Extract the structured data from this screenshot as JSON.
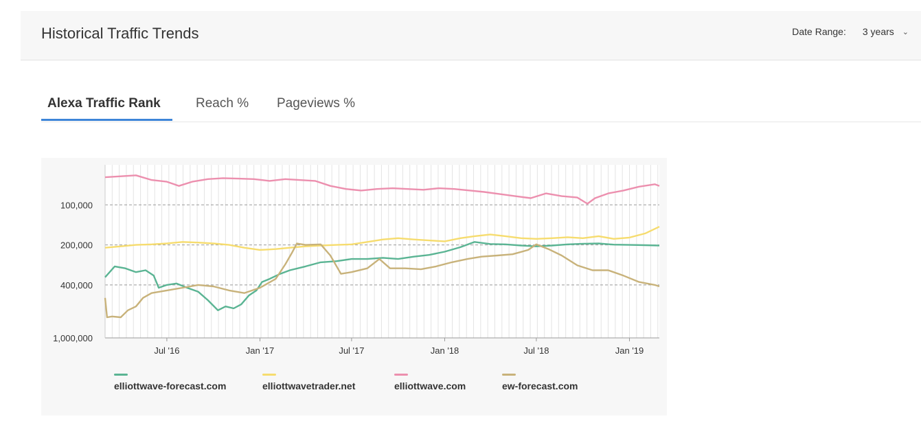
{
  "header": {
    "title": "Historical Traffic Trends",
    "date_range_label": "Date Range:",
    "date_range_value": "3 years"
  },
  "tabs": [
    {
      "label": "Alexa Traffic Rank",
      "active": true
    },
    {
      "label": "Reach %",
      "active": false
    },
    {
      "label": "Pageviews %",
      "active": false
    }
  ],
  "colors": {
    "accent": "#3d85d8",
    "elliottwave-forecast.com": "#5ab493",
    "elliottwavetrader.net": "#f6dc6e",
    "elliottwave.com": "#ec8fae",
    "ew-forecast.com": "#c8b27a"
  },
  "chart_data": {
    "type": "line",
    "title": "",
    "xlabel": "",
    "ylabel": "",
    "y_scale": "log",
    "y_reversed": true,
    "ylim": [
      1000000,
      50000
    ],
    "y_ticks": [
      100000,
      200000,
      400000,
      1000000
    ],
    "y_tick_labels": [
      "100,000",
      "200,000",
      "400,000",
      "1,000,000"
    ],
    "grid": "vertical lines every two weeks; dashed horizontal lines at 100,000, 200,000 and 400,000",
    "legend_position": "bottom",
    "x_ticks": [
      "2016-07-01",
      "2017-01-01",
      "2017-07-01",
      "2018-01-01",
      "2018-07-01",
      "2019-01-01"
    ],
    "x_tick_labels": [
      "Jul '16",
      "Jan '17",
      "Jul '17",
      "Jan '18",
      "Jul '18",
      "Jan '19"
    ],
    "xlim": [
      "2016-03-01",
      "2019-03-01"
    ],
    "series": [
      {
        "name": "elliottwave-forecast.com",
        "color": "#5ab493",
        "points": [
          [
            "2016-03-01",
            350000
          ],
          [
            "2016-03-20",
            290000
          ],
          [
            "2016-04-10",
            300000
          ],
          [
            "2016-05-01",
            320000
          ],
          [
            "2016-05-20",
            310000
          ],
          [
            "2016-06-05",
            340000
          ],
          [
            "2016-06-15",
            420000
          ],
          [
            "2016-07-01",
            400000
          ],
          [
            "2016-07-20",
            390000
          ],
          [
            "2016-08-10",
            420000
          ],
          [
            "2016-09-01",
            450000
          ],
          [
            "2016-09-20",
            520000
          ],
          [
            "2016-10-10",
            620000
          ],
          [
            "2016-10-25",
            580000
          ],
          [
            "2016-11-10",
            600000
          ],
          [
            "2016-11-25",
            560000
          ],
          [
            "2016-12-10",
            480000
          ],
          [
            "2016-12-25",
            440000
          ],
          [
            "2017-01-05",
            380000
          ],
          [
            "2017-01-20",
            360000
          ],
          [
            "2017-02-10",
            330000
          ],
          [
            "2017-03-01",
            310000
          ],
          [
            "2017-04-01",
            290000
          ],
          [
            "2017-05-01",
            270000
          ],
          [
            "2017-06-01",
            265000
          ],
          [
            "2017-07-01",
            255000
          ],
          [
            "2017-08-01",
            255000
          ],
          [
            "2017-09-01",
            250000
          ],
          [
            "2017-10-01",
            255000
          ],
          [
            "2017-11-01",
            245000
          ],
          [
            "2017-12-01",
            238000
          ],
          [
            "2018-01-01",
            225000
          ],
          [
            "2018-02-01",
            208000
          ],
          [
            "2018-03-01",
            190000
          ],
          [
            "2018-04-01",
            197000
          ],
          [
            "2018-05-01",
            198000
          ],
          [
            "2018-06-01",
            202000
          ],
          [
            "2018-07-01",
            205000
          ],
          [
            "2018-08-01",
            202000
          ],
          [
            "2018-09-01",
            198000
          ],
          [
            "2018-10-01",
            196000
          ],
          [
            "2018-11-01",
            195000
          ],
          [
            "2018-12-01",
            199000
          ],
          [
            "2019-01-01",
            200000
          ],
          [
            "2019-02-01",
            201000
          ],
          [
            "2019-03-01",
            202000
          ]
        ]
      },
      {
        "name": "elliottwavetrader.net",
        "color": "#f6dc6e",
        "points": [
          [
            "2016-03-01",
            210000
          ],
          [
            "2016-04-01",
            205000
          ],
          [
            "2016-05-01",
            200000
          ],
          [
            "2016-06-01",
            198000
          ],
          [
            "2016-07-01",
            195000
          ],
          [
            "2016-08-01",
            190000
          ],
          [
            "2016-09-01",
            192000
          ],
          [
            "2016-10-01",
            195000
          ],
          [
            "2016-11-01",
            200000
          ],
          [
            "2016-12-01",
            210000
          ],
          [
            "2017-01-01",
            218000
          ],
          [
            "2017-02-01",
            215000
          ],
          [
            "2017-03-01",
            210000
          ],
          [
            "2017-04-01",
            205000
          ],
          [
            "2017-05-01",
            202000
          ],
          [
            "2017-06-01",
            200000
          ],
          [
            "2017-07-01",
            198000
          ],
          [
            "2017-08-01",
            190000
          ],
          [
            "2017-09-01",
            182000
          ],
          [
            "2017-10-01",
            178000
          ],
          [
            "2017-11-01",
            182000
          ],
          [
            "2017-12-01",
            185000
          ],
          [
            "2018-01-01",
            188000
          ],
          [
            "2018-02-01",
            178000
          ],
          [
            "2018-03-01",
            172000
          ],
          [
            "2018-04-01",
            167000
          ],
          [
            "2018-05-01",
            172000
          ],
          [
            "2018-06-01",
            178000
          ],
          [
            "2018-07-01",
            180000
          ],
          [
            "2018-08-01",
            178000
          ],
          [
            "2018-09-01",
            175000
          ],
          [
            "2018-10-01",
            178000
          ],
          [
            "2018-11-01",
            172000
          ],
          [
            "2018-12-01",
            180000
          ],
          [
            "2019-01-01",
            176000
          ],
          [
            "2019-02-01",
            164000
          ],
          [
            "2019-03-01",
            146000
          ]
        ]
      },
      {
        "name": "elliottwave.com",
        "color": "#ec8fae",
        "points": [
          [
            "2016-03-01",
            62000
          ],
          [
            "2016-04-01",
            61000
          ],
          [
            "2016-05-01",
            60000
          ],
          [
            "2016-06-01",
            65000
          ],
          [
            "2016-07-01",
            67000
          ],
          [
            "2016-07-25",
            72000
          ],
          [
            "2016-08-20",
            67000
          ],
          [
            "2016-09-20",
            64000
          ],
          [
            "2016-10-20",
            63000
          ],
          [
            "2016-11-20",
            63500
          ],
          [
            "2016-12-20",
            64000
          ],
          [
            "2017-01-20",
            66000
          ],
          [
            "2017-02-20",
            64000
          ],
          [
            "2017-03-20",
            65000
          ],
          [
            "2017-04-20",
            66000
          ],
          [
            "2017-05-20",
            72000
          ],
          [
            "2017-06-20",
            76000
          ],
          [
            "2017-07-20",
            78000
          ],
          [
            "2017-08-20",
            76000
          ],
          [
            "2017-09-20",
            75000
          ],
          [
            "2017-10-20",
            76000
          ],
          [
            "2017-11-20",
            77000
          ],
          [
            "2017-12-20",
            75000
          ],
          [
            "2018-01-20",
            76000
          ],
          [
            "2018-02-20",
            78000
          ],
          [
            "2018-03-20",
            80000
          ],
          [
            "2018-04-20",
            83000
          ],
          [
            "2018-05-20",
            86000
          ],
          [
            "2018-06-20",
            89000
          ],
          [
            "2018-07-20",
            82000
          ],
          [
            "2018-08-20",
            86000
          ],
          [
            "2018-09-20",
            88000
          ],
          [
            "2018-10-10",
            98000
          ],
          [
            "2018-10-25",
            89000
          ],
          [
            "2018-11-20",
            82000
          ],
          [
            "2018-12-20",
            78000
          ],
          [
            "2019-01-20",
            73000
          ],
          [
            "2019-02-20",
            70000
          ],
          [
            "2019-03-01",
            72000
          ]
        ]
      },
      {
        "name": "ew-forecast.com",
        "color": "#c8b27a",
        "points": [
          [
            "2016-03-01",
            500000
          ],
          [
            "2016-03-05",
            700000
          ],
          [
            "2016-03-15",
            690000
          ],
          [
            "2016-04-01",
            700000
          ],
          [
            "2016-04-15",
            620000
          ],
          [
            "2016-05-01",
            580000
          ],
          [
            "2016-05-15",
            500000
          ],
          [
            "2016-06-01",
            460000
          ],
          [
            "2016-07-01",
            440000
          ],
          [
            "2016-08-01",
            420000
          ],
          [
            "2016-09-01",
            400000
          ],
          [
            "2016-10-01",
            410000
          ],
          [
            "2016-11-01",
            440000
          ],
          [
            "2016-12-01",
            460000
          ],
          [
            "2017-01-01",
            420000
          ],
          [
            "2017-02-01",
            360000
          ],
          [
            "2017-02-20",
            280000
          ],
          [
            "2017-03-05",
            230000
          ],
          [
            "2017-03-15",
            195000
          ],
          [
            "2017-04-01",
            200000
          ],
          [
            "2017-05-01",
            198000
          ],
          [
            "2017-05-20",
            240000
          ],
          [
            "2017-06-10",
            330000
          ],
          [
            "2017-07-01",
            320000
          ],
          [
            "2017-08-01",
            300000
          ],
          [
            "2017-08-25",
            255000
          ],
          [
            "2017-09-15",
            300000
          ],
          [
            "2017-10-15",
            300000
          ],
          [
            "2017-11-15",
            305000
          ],
          [
            "2017-12-15",
            290000
          ],
          [
            "2018-01-15",
            270000
          ],
          [
            "2018-02-15",
            255000
          ],
          [
            "2018-03-15",
            245000
          ],
          [
            "2018-04-15",
            240000
          ],
          [
            "2018-05-15",
            235000
          ],
          [
            "2018-06-15",
            218000
          ],
          [
            "2018-07-01",
            198000
          ],
          [
            "2018-07-25",
            215000
          ],
          [
            "2018-08-20",
            240000
          ],
          [
            "2018-09-20",
            285000
          ],
          [
            "2018-10-20",
            310000
          ],
          [
            "2018-11-20",
            310000
          ],
          [
            "2018-12-20",
            340000
          ],
          [
            "2019-01-20",
            380000
          ],
          [
            "2019-02-20",
            400000
          ],
          [
            "2019-03-01",
            410000
          ]
        ]
      }
    ]
  }
}
